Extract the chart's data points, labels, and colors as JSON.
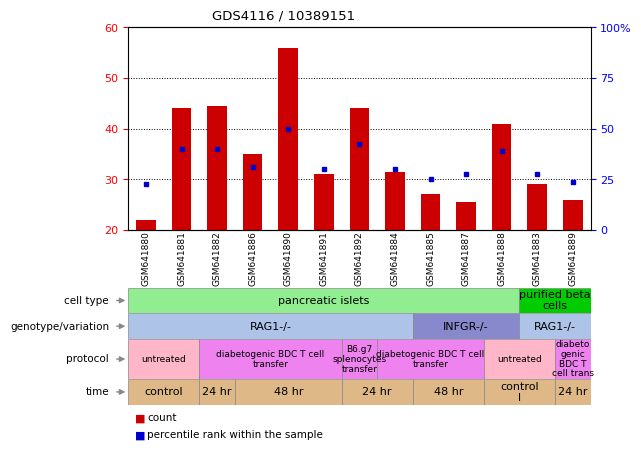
{
  "title": "GDS4116 / 10389151",
  "samples": [
    "GSM641880",
    "GSM641881",
    "GSM641882",
    "GSM641886",
    "GSM641890",
    "GSM641891",
    "GSM641892",
    "GSM641884",
    "GSM641885",
    "GSM641887",
    "GSM641888",
    "GSM641883",
    "GSM641889"
  ],
  "bar_values": [
    22,
    44,
    44.5,
    35,
    56,
    31,
    44,
    31.5,
    27,
    25.5,
    41,
    29,
    26
  ],
  "dot_values": [
    29,
    36,
    36,
    32.5,
    40,
    32,
    37,
    32,
    30,
    31,
    35.5,
    31,
    29.5
  ],
  "ylim_left": [
    20,
    60
  ],
  "ylim_right": [
    0,
    100
  ],
  "yticks_left": [
    20,
    30,
    40,
    50,
    60
  ],
  "yticks_right": [
    0,
    25,
    50,
    75,
    100
  ],
  "bar_color": "#cc0000",
  "dot_color": "#0000cc",
  "row_labels": [
    "cell type",
    "genotype/variation",
    "protocol",
    "time"
  ],
  "cell_type_groups": [
    {
      "label": "pancreatic islets",
      "start": 0,
      "end": 11,
      "color": "#90ee90"
    },
    {
      "label": "purified beta\ncells",
      "start": 11,
      "end": 13,
      "color": "#00cc00"
    }
  ],
  "genotype_groups": [
    {
      "label": "RAG1-/-",
      "start": 0,
      "end": 8,
      "color": "#adc4e8"
    },
    {
      "label": "INFGR-/-",
      "start": 8,
      "end": 11,
      "color": "#8888cc"
    },
    {
      "label": "RAG1-/-",
      "start": 11,
      "end": 13,
      "color": "#adc4e8"
    }
  ],
  "protocol_groups": [
    {
      "label": "untreated",
      "start": 0,
      "end": 2,
      "color": "#ffb6c8"
    },
    {
      "label": "diabetogenic BDC T cell\ntransfer",
      "start": 2,
      "end": 6,
      "color": "#ee82ee"
    },
    {
      "label": "B6.g7\nsplenocytes\ntransfer",
      "start": 6,
      "end": 7,
      "color": "#ee82ee"
    },
    {
      "label": "diabetogenic BDC T cell\ntransfer",
      "start": 7,
      "end": 10,
      "color": "#ee82ee"
    },
    {
      "label": "untreated",
      "start": 10,
      "end": 12,
      "color": "#ffb6c8"
    },
    {
      "label": "diabeto\ngenic\nBDC T\ncell trans",
      "start": 12,
      "end": 13,
      "color": "#ee82ee"
    }
  ],
  "time_groups": [
    {
      "label": "control",
      "start": 0,
      "end": 2,
      "color": "#deb887"
    },
    {
      "label": "24 hr",
      "start": 2,
      "end": 3,
      "color": "#deb887"
    },
    {
      "label": "48 hr",
      "start": 3,
      "end": 6,
      "color": "#deb887"
    },
    {
      "label": "24 hr",
      "start": 6,
      "end": 8,
      "color": "#deb887"
    },
    {
      "label": "48 hr",
      "start": 8,
      "end": 10,
      "color": "#deb887"
    },
    {
      "label": "control\nl",
      "start": 10,
      "end": 12,
      "color": "#deb887"
    },
    {
      "label": "24 hr",
      "start": 12,
      "end": 13,
      "color": "#deb887"
    }
  ],
  "legend_count_color": "#cc0000",
  "legend_dot_color": "#0000cc"
}
